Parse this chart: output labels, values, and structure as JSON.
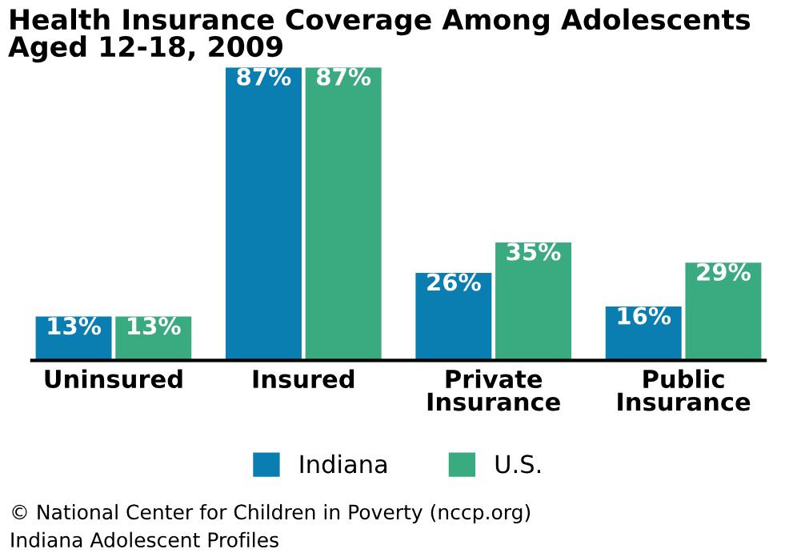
{
  "chart_data": {
    "type": "bar",
    "title": "Health Insurance Coverage Among Adolescents\nAged 12-18, 2009",
    "categories": [
      "Uninsured",
      "Insured",
      "Private\nInsurance",
      "Public\nInsurance"
    ],
    "series": [
      {
        "name": "Indiana",
        "color": "#0a7eb0",
        "values": [
          13,
          87,
          26,
          16
        ],
        "value_labels": [
          "13%",
          "87%",
          "26%",
          "16%"
        ]
      },
      {
        "name": "U.S.",
        "color": "#3aaa80",
        "values": [
          13,
          87,
          35,
          29
        ],
        "value_labels": [
          "13%",
          "87%",
          "35%",
          "29%"
        ]
      }
    ],
    "legend": "bottom",
    "grid": false,
    "annotations": [
      "© National Center for Children in Poverty (nccp.org)",
      "Indiana Adolescent Profiles"
    ]
  }
}
